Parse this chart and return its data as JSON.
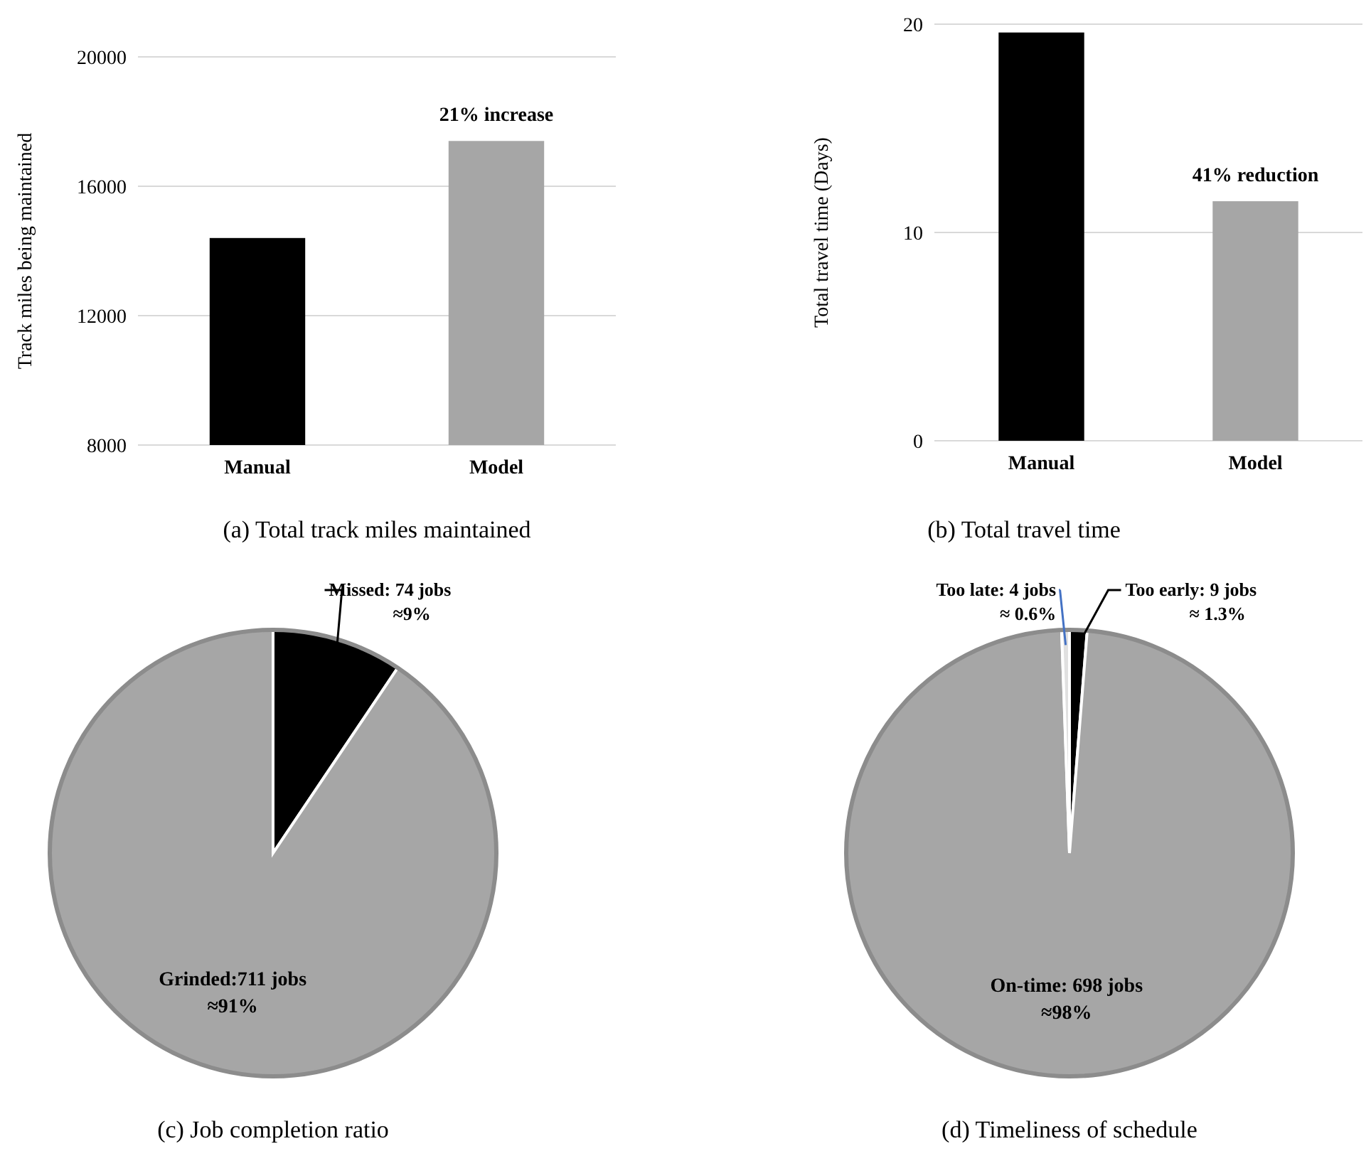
{
  "chart_data": [
    {
      "type": "bar",
      "categories": [
        "Manual",
        "Model"
      ],
      "values": [
        14400,
        17400
      ],
      "colors": [
        "#000000",
        "#a6a6a6"
      ],
      "ylabel": "Track miles being maintained",
      "ylim": [
        8000,
        20000
      ],
      "yticks": [
        8000,
        12000,
        16000,
        20000
      ],
      "grid": "y",
      "annotations": [
        {
          "text": "21% increase",
          "x": "Model",
          "y": 17400
        },
        "(a) Total track miles maintained"
      ]
    },
    {
      "type": "bar",
      "categories": [
        "Manual",
        "Model"
      ],
      "values": [
        19.6,
        11.5
      ],
      "colors": [
        "#000000",
        "#a6a6a6"
      ],
      "ylabel": "Total travel time (Days)",
      "ylim": [
        0,
        20
      ],
      "yticks": [
        0,
        10,
        20
      ],
      "grid": "y",
      "annotations": [
        {
          "text": "41% reduction",
          "x": "Model",
          "y": 11.5
        },
        "(b) Total travel time"
      ]
    },
    {
      "type": "pie",
      "categories": [
        null,
        null
      ],
      "values": [
        74,
        711
      ],
      "colors": [
        "#000000",
        "#a6a6a6"
      ],
      "value_labels": [
        "Missed: 74 jobs\n≈9%",
        "Grinded:711 jobs\n≈91%"
      ],
      "annotations": [
        "(c) Job completion ratio"
      ]
    },
    {
      "type": "pie",
      "categories": [
        null,
        null,
        null
      ],
      "values": [
        9,
        698,
        4
      ],
      "colors": [
        "#000000",
        "#a6a6a6",
        "#e0e0e0"
      ],
      "value_labels": [
        "Too early: 9 jobs\n≈ 1.3%",
        "On-time: 698 jobs\n≈98%",
        "Too late: 4 jobs\n≈ 0.6%"
      ],
      "annotations": [
        "(d) Timeliness of schedule"
      ]
    }
  ]
}
